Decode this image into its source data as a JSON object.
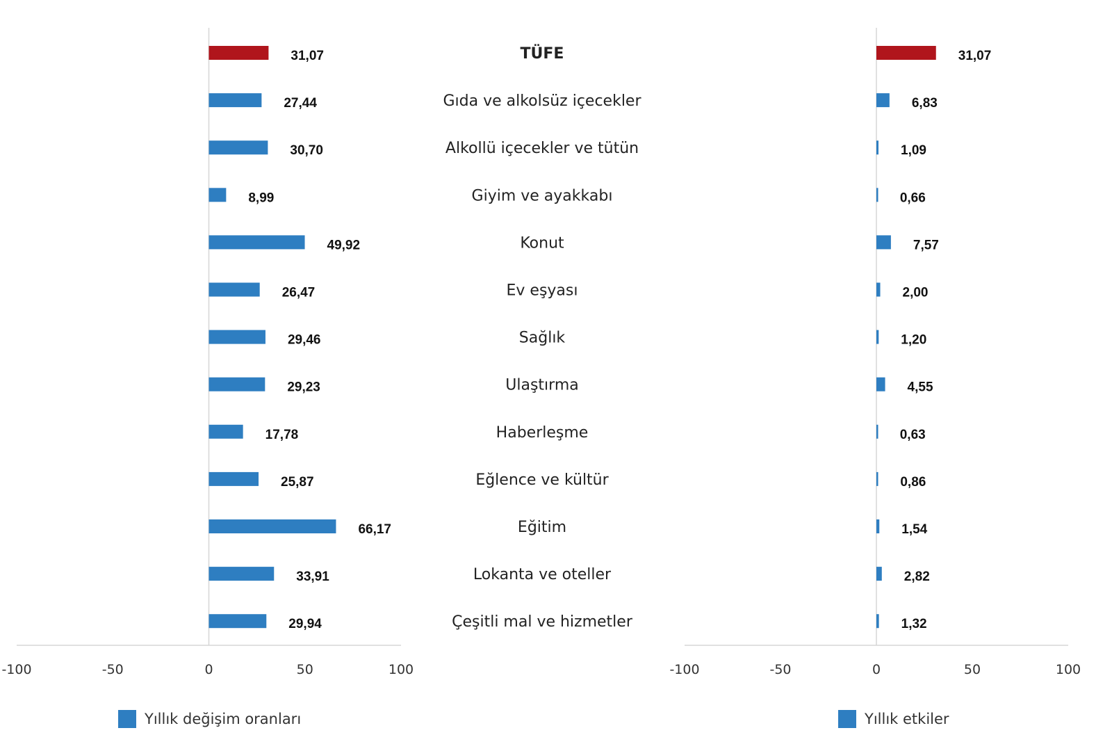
{
  "colors": {
    "total_bar": "#B0151C",
    "item_bar": "#2E7EC1",
    "axis_line": "#D6D6D6"
  },
  "chart_data": [
    {
      "type": "bar",
      "orientation": "horizontal",
      "categories": [
        "TÜFE",
        "Gıda ve alkolsüz içecekler",
        "Alkollü içecekler ve tütün",
        "Giyim ve ayakkabı",
        "Konut",
        "Ev eşyası",
        "Sağlık",
        "Ulaştırma",
        "Haberleşme",
        "Eğlence ve kültür",
        "Eğitim",
        "Lokanta ve oteller",
        "Çeşitli mal ve hizmetler"
      ],
      "values": [
        31.07,
        27.44,
        30.7,
        8.99,
        49.92,
        26.47,
        29.46,
        29.23,
        17.78,
        25.87,
        66.17,
        33.91,
        29.94
      ],
      "value_labels": [
        "31,07",
        "27,44",
        "30,70",
        "8,99",
        "49,92",
        "26,47",
        "29,46",
        "29,23",
        "17,78",
        "25,87",
        "66,17",
        "33,91",
        "29,94"
      ],
      "xlim": [
        -100,
        100
      ],
      "xticks": [
        -100,
        -50,
        0,
        50,
        100
      ],
      "legend": "Yıllık değişim oranları",
      "legend_position": "bottom-left",
      "highlight_index": 0,
      "grid": false
    },
    {
      "type": "bar",
      "orientation": "horizontal",
      "categories": [
        "TÜFE",
        "Gıda ve alkolsüz içecekler",
        "Alkollü içecekler ve tütün",
        "Giyim ve ayakkabı",
        "Konut",
        "Ev eşyası",
        "Sağlık",
        "Ulaştırma",
        "Haberleşme",
        "Eğlence ve kültür",
        "Eğitim",
        "Lokanta ve oteller",
        "Çeşitli mal ve hizmetler"
      ],
      "values": [
        31.07,
        6.83,
        1.09,
        0.66,
        7.57,
        2.0,
        1.2,
        4.55,
        0.63,
        0.86,
        1.54,
        2.82,
        1.32
      ],
      "value_labels": [
        "31,07",
        "6,83",
        "1,09",
        "0,66",
        "7,57",
        "2,00",
        "1,20",
        "4,55",
        "0,63",
        "0,86",
        "1,54",
        "2,82",
        "1,32"
      ],
      "xlim": [
        -100,
        100
      ],
      "xticks": [
        -100,
        -50,
        0,
        50,
        100
      ],
      "legend": "Yıllık etkiler",
      "legend_position": "bottom-right",
      "highlight_index": 0,
      "grid": false
    }
  ]
}
